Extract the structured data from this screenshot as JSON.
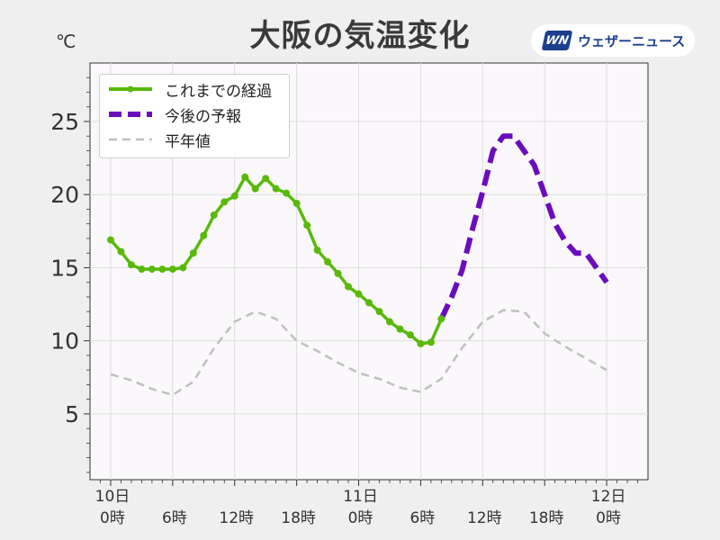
{
  "header": {
    "title": "大阪の気温変化",
    "unit": "℃",
    "logo_mark": "WN",
    "logo_text": "ウェザーニュース"
  },
  "colors": {
    "observed": "#58b90a",
    "forecast": "#6a0dbd",
    "normal": "#c0c0c0",
    "plot_bg": "#faf8fa",
    "grid": "#dddddd"
  },
  "legend": {
    "observed": "これまでの経過",
    "forecast": "今後の予報",
    "normal": "平年値"
  },
  "chart_data": {
    "type": "line",
    "title": "大阪の気温変化",
    "ylabel": "℃",
    "xlim": [
      -2,
      52
    ],
    "ylim": [
      0.5,
      29
    ],
    "x_unit": "hours from 10日 0時",
    "grid": true,
    "legend_position": "top-left",
    "yticks": [
      5,
      10,
      15,
      20,
      25
    ],
    "xticks": [
      {
        "x": 0,
        "day": "10日",
        "time": "0時"
      },
      {
        "x": 6,
        "day": "",
        "time": "6時"
      },
      {
        "x": 12,
        "day": "",
        "time": "12時"
      },
      {
        "x": 18,
        "day": "",
        "time": "18時"
      },
      {
        "x": 24,
        "day": "11日",
        "time": "0時"
      },
      {
        "x": 30,
        "day": "",
        "time": "6時"
      },
      {
        "x": 36,
        "day": "",
        "time": "12時"
      },
      {
        "x": 42,
        "day": "",
        "time": "18時"
      },
      {
        "x": 48,
        "day": "12日",
        "time": "0時"
      }
    ],
    "series": [
      {
        "name": "これまでの経過",
        "style": "solid-markers",
        "x": [
          0,
          1,
          2,
          3,
          4,
          5,
          6,
          7,
          8,
          9,
          10,
          11,
          12,
          13,
          14,
          15,
          16,
          17,
          18,
          19,
          20,
          21,
          22,
          23,
          24,
          25,
          26,
          27,
          28,
          29,
          30,
          31,
          32
        ],
        "y": [
          16.9,
          16.1,
          15.2,
          14.9,
          14.9,
          14.9,
          14.9,
          15.0,
          16.0,
          17.2,
          18.6,
          19.5,
          19.9,
          21.2,
          20.4,
          21.1,
          20.4,
          20.1,
          19.4,
          17.9,
          16.2,
          15.4,
          14.6,
          13.7,
          13.2,
          12.6,
          12.0,
          11.3,
          10.8,
          10.4,
          9.8,
          9.9,
          11.5
        ]
      },
      {
        "name": "今後の予報",
        "style": "dashed",
        "x": [
          32,
          33,
          34,
          35,
          36,
          37,
          38,
          39,
          40,
          41,
          42,
          43,
          44,
          45,
          46,
          47,
          48
        ],
        "y": [
          11.5,
          13.0,
          14.8,
          17.6,
          20.2,
          23.0,
          24.0,
          24.0,
          23.0,
          22.0,
          20.0,
          18.0,
          16.8,
          16.0,
          16.0,
          15.0,
          14.0
        ]
      },
      {
        "name": "平年値",
        "style": "dashed-thin",
        "x": [
          0,
          2,
          4,
          6,
          8,
          10,
          12,
          14,
          16,
          18,
          20,
          22,
          24,
          26,
          28,
          30,
          32,
          34,
          36,
          38,
          40,
          42,
          44,
          46,
          48
        ],
        "y": [
          7.7,
          7.3,
          6.7,
          6.3,
          7.2,
          9.5,
          11.3,
          12.0,
          11.5,
          10.0,
          9.3,
          8.5,
          7.8,
          7.4,
          6.8,
          6.5,
          7.4,
          9.5,
          11.3,
          12.1,
          12.0,
          10.5,
          9.6,
          8.8,
          8.0
        ]
      }
    ]
  }
}
